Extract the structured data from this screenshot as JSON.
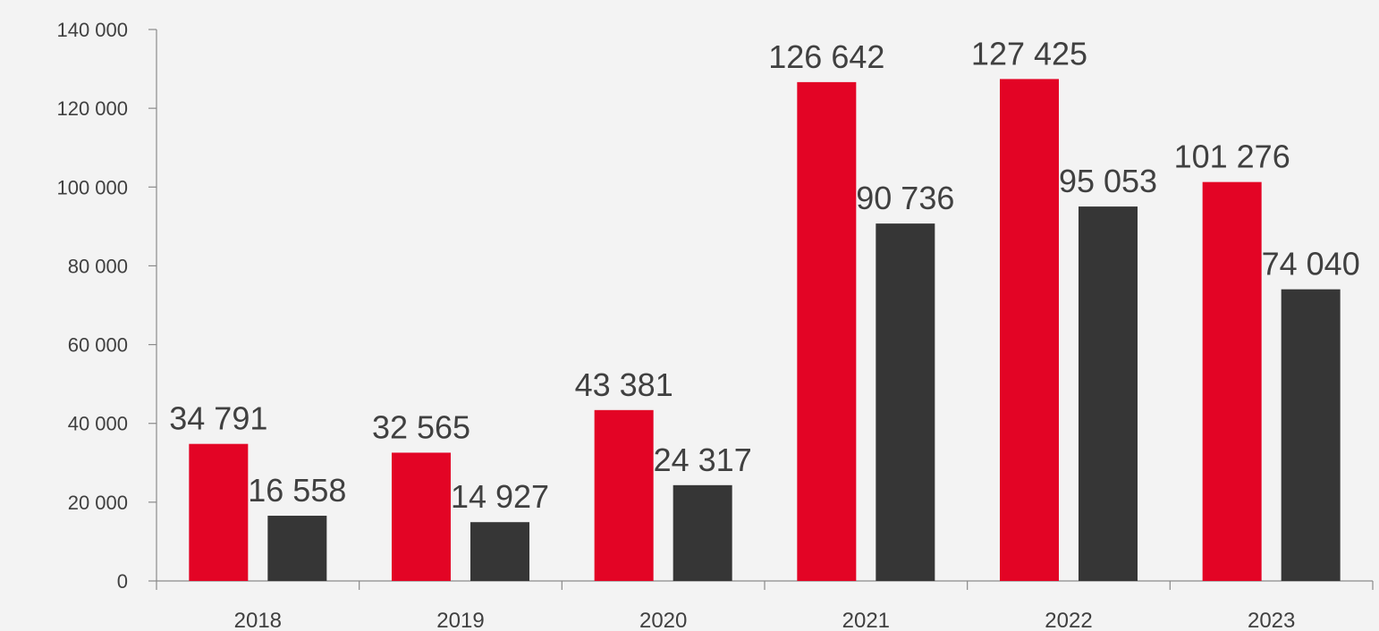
{
  "chart_data": {
    "type": "bar",
    "title": "",
    "xlabel": "",
    "ylabel": "",
    "categories": [
      "2018",
      "2019",
      "2020",
      "2021",
      "2022",
      "2023"
    ],
    "series": [
      {
        "color": "#e30425",
        "values": [
          34791,
          32565,
          43381,
          126642,
          127425,
          101276
        ]
      },
      {
        "color": "#363636",
        "values": [
          16558,
          14927,
          24317,
          90736,
          95053,
          74040
        ]
      }
    ],
    "ylim": [
      0,
      140000
    ],
    "yticks": [
      0,
      20000,
      40000,
      60000,
      80000,
      100000,
      120000,
      140000
    ],
    "ytick_labels": [
      "0",
      "20 000",
      "40 000",
      "60 000",
      "80 000",
      "100 000",
      "120 000",
      "140 000"
    ],
    "data_labels": [
      [
        "34 791",
        "32 565",
        "43 381",
        "126 642",
        "127 425",
        "101 276"
      ],
      [
        "16 558",
        "14 927",
        "24 317",
        "90 736",
        "95 053",
        "74 040"
      ]
    ],
    "grid": false,
    "legend": "none"
  }
}
